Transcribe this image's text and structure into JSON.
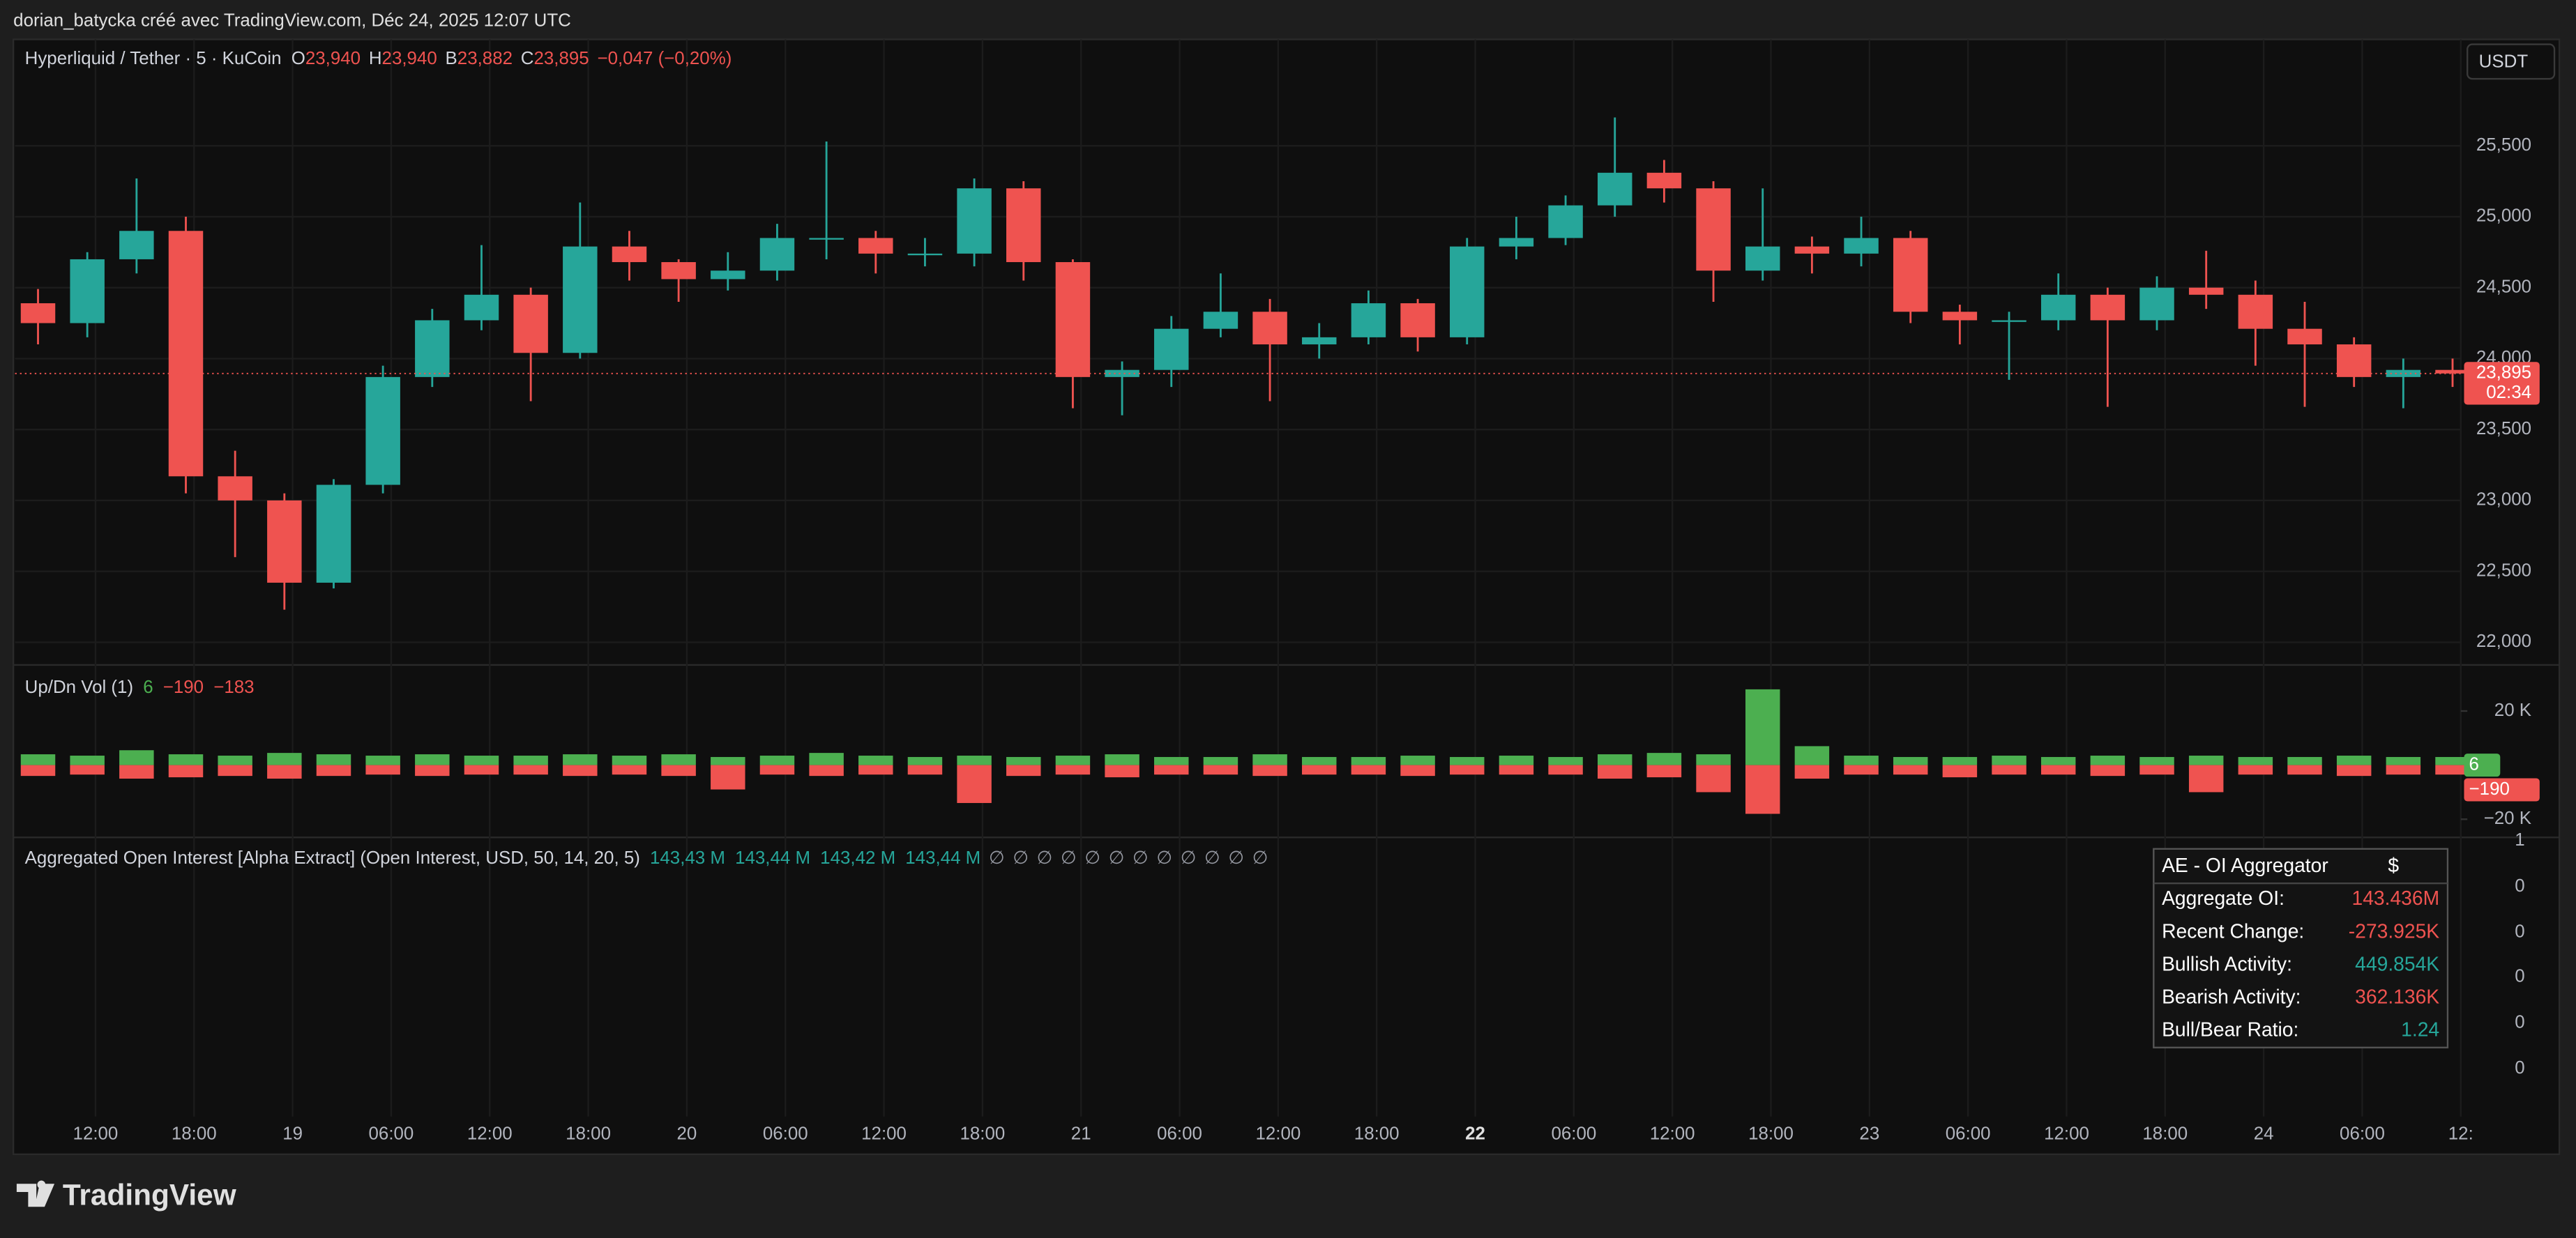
{
  "header": {
    "credit": "dorian_batycka créé avec TradingView.com, Déc 24, 2025 12:07 UTC"
  },
  "chart_data": [
    {
      "type": "candlestick",
      "title": "Hyperliquid / Tether · 5 · KuCoin",
      "ohlc_legend": [
        {
          "label": "O",
          "value": "23,940"
        },
        {
          "label": "H",
          "value": "23,940"
        },
        {
          "label": "B",
          "value": "23,882"
        },
        {
          "label": "C",
          "value": "23,895"
        }
      ],
      "change": "−0,047 (−0,20%)",
      "currency": "USDT",
      "up_color": "#26a69a",
      "down_color": "#ef5350",
      "x": [
        7,
        10,
        13,
        16,
        19,
        22,
        25,
        28,
        31,
        34,
        37,
        40,
        43,
        46,
        49,
        52,
        55,
        58,
        61,
        64,
        67,
        70,
        73,
        76,
        79,
        82,
        85,
        88,
        91,
        94,
        97,
        100,
        103,
        106,
        109,
        112,
        115,
        118,
        121,
        124,
        127,
        130,
        133,
        136,
        139,
        142,
        145,
        148,
        151,
        154
      ],
      "open": [
        24390,
        24250,
        24700,
        24900,
        23170,
        23000,
        22420,
        23110,
        23870,
        24270,
        24450,
        24040,
        24790,
        24680,
        24560,
        24620,
        24850,
        24850,
        24740,
        24740,
        25200,
        24680,
        23870,
        23920,
        24210,
        24330,
        24100,
        24150,
        24390,
        24150,
        24790,
        24850,
        25080,
        25310,
        25200,
        24620,
        24790,
        24740,
        24850,
        24330,
        24270,
        24270,
        24450,
        24270,
        24500,
        24450,
        24210,
        24100,
        23870,
        23920
      ],
      "high": [
        24490,
        24750,
        25270,
        25000,
        23350,
        23050,
        23150,
        23950,
        24350,
        24800,
        24500,
        25100,
        24900,
        24700,
        24750,
        24950,
        25530,
        24900,
        24850,
        25270,
        25250,
        24700,
        23980,
        24300,
        24600,
        24420,
        24250,
        24480,
        24420,
        24850,
        25000,
        25150,
        25700,
        25400,
        25250,
        25200,
        24860,
        25000,
        24900,
        24380,
        24330,
        24600,
        24500,
        24580,
        24760,
        24550,
        24400,
        24150,
        24000,
        24000
      ],
      "low": [
        24100,
        24150,
        24600,
        23050,
        22600,
        22230,
        22380,
        23050,
        23800,
        24200,
        23700,
        24000,
        24550,
        24400,
        24480,
        24550,
        24700,
        24600,
        24650,
        24650,
        24550,
        23650,
        23600,
        23800,
        24150,
        23700,
        24000,
        24100,
        24050,
        24100,
        24700,
        24800,
        25000,
        25100,
        24400,
        24550,
        24600,
        24650,
        24250,
        24100,
        23850,
        24200,
        23660,
        24200,
        24350,
        23950,
        23660,
        23800,
        23650,
        23800
      ],
      "close": [
        24250,
        24700,
        24900,
        23170,
        23000,
        22420,
        23110,
        23870,
        24270,
        24450,
        24040,
        24790,
        24680,
        24560,
        24620,
        24850,
        24850,
        24740,
        24740,
        25200,
        24680,
        23870,
        23920,
        24210,
        24330,
        24100,
        24150,
        24390,
        24150,
        24790,
        24850,
        25080,
        25310,
        25200,
        24620,
        24790,
        24740,
        24850,
        24330,
        24270,
        24270,
        24450,
        24270,
        24500,
        24450,
        24210,
        24100,
        23870,
        23920,
        23895
      ],
      "last_price": 23895,
      "last_price_label": "23,895",
      "countdown": "02:34",
      "xlim": [
        7.1,
        156
      ],
      "xticks": [
        {
          "value": 12,
          "label": "12:00"
        },
        {
          "value": 18,
          "label": "18:00"
        },
        {
          "value": 24,
          "label": "19"
        },
        {
          "value": 30,
          "label": "06:00"
        },
        {
          "value": 36,
          "label": "12:00"
        },
        {
          "value": 42,
          "label": "18:00"
        },
        {
          "value": 48,
          "label": "20"
        },
        {
          "value": 54,
          "label": "06:00"
        },
        {
          "value": 60,
          "label": "12:00"
        },
        {
          "value": 66,
          "label": "18:00"
        },
        {
          "value": 72,
          "label": "21"
        },
        {
          "value": 78,
          "label": "06:00"
        },
        {
          "value": 84,
          "label": "12:00"
        },
        {
          "value": 90,
          "label": "18:00"
        },
        {
          "value": 96,
          "label": "22"
        },
        {
          "value": 102,
          "label": "06:00"
        },
        {
          "value": 108,
          "label": "12:00"
        },
        {
          "value": 114,
          "label": "18:00"
        },
        {
          "value": 120,
          "label": "23"
        },
        {
          "value": 126,
          "label": "06:00"
        },
        {
          "value": 132,
          "label": "12:00"
        },
        {
          "value": 138,
          "label": "18:00"
        },
        {
          "value": 144,
          "label": "24"
        },
        {
          "value": 150,
          "label": "06:00"
        },
        {
          "value": 156,
          "label": "12:"
        }
      ],
      "ylim": [
        21840,
        26250
      ],
      "yticks": [
        {
          "value": 22000,
          "label": "22,000"
        },
        {
          "value": 22500,
          "label": "22,500"
        },
        {
          "value": 23000,
          "label": "23,000"
        },
        {
          "value": 23500,
          "label": "23,500"
        },
        {
          "value": 24000,
          "label": "24,000"
        },
        {
          "value": 24500,
          "label": "24,500"
        },
        {
          "value": 25000,
          "label": "25,000"
        },
        {
          "value": 25500,
          "label": "25,500"
        }
      ],
      "grid": true
    },
    {
      "type": "bar",
      "title": "Up/Dn Vol (1)",
      "legend_values": [
        "6",
        "−190",
        "−183"
      ],
      "series": [
        {
          "color": "#4caf50",
          "values": [
            4000,
            3500,
            5500,
            4000,
            3500,
            4500,
            4000,
            3500,
            4000,
            3500,
            3500,
            4000,
            3500,
            4000,
            3000,
            3500,
            4500,
            3500,
            3000,
            3500,
            3000,
            3500,
            4000,
            3000,
            3000,
            4000,
            3000,
            3000,
            3500,
            3000,
            3500,
            3000,
            4000,
            4500,
            4000,
            28000,
            7000,
            3500,
            3000,
            3000,
            3500,
            3000,
            3500,
            3000,
            3500,
            3000,
            3000,
            3500,
            3000,
            3000
          ]
        },
        {
          "color": "#ef5350",
          "values": [
            -4000,
            -3500,
            -5000,
            -4500,
            -4000,
            -5000,
            -4000,
            -3500,
            -4000,
            -3500,
            -3500,
            -4000,
            -3500,
            -4000,
            -9000,
            -3500,
            -4000,
            -3500,
            -3500,
            -14000,
            -4000,
            -3500,
            -4500,
            -3500,
            -3500,
            -4000,
            -3500,
            -3500,
            -4000,
            -3500,
            -3500,
            -3500,
            -5000,
            -4500,
            -10000,
            -18000,
            -5000,
            -3500,
            -3500,
            -4500,
            -3500,
            -3500,
            -4000,
            -3500,
            -10000,
            -3500,
            -3500,
            -4000,
            -3500,
            -3500
          ]
        }
      ],
      "ylim": [
        -26700,
        37000
      ],
      "yticks": [
        {
          "value": 20000,
          "label": "20 K"
        },
        {
          "value": -20000,
          "label": "−20 K"
        }
      ]
    }
  ],
  "oi_panel": {
    "title": "Aggregated Open Interest [Alpha Extract] (Open Interest, USD, 50, 14, 20, 5)",
    "values": [
      "143,43 M",
      "143,44 M",
      "143,42 M",
      "143,44 M"
    ],
    "empty_values": [
      "∅",
      "∅",
      "∅",
      "∅",
      "∅",
      "∅",
      "∅",
      "∅",
      "∅",
      "∅",
      "∅",
      "∅"
    ],
    "axis_labels": [
      "1",
      "0",
      "0",
      "0",
      "0",
      "0"
    ],
    "table": {
      "header": [
        "AE - OI Aggregator",
        "$"
      ],
      "rows": [
        [
          "Aggregate OI:",
          "143.436M"
        ],
        [
          "Recent Change:",
          "-273.925K"
        ],
        [
          "Bullish Activity:",
          "449.854K"
        ],
        [
          "Bearish Activity:",
          "362.136K"
        ],
        [
          "Bull/Bear Ratio:",
          "1.24"
        ]
      ]
    }
  },
  "footer": {
    "brand": "TradingView"
  }
}
